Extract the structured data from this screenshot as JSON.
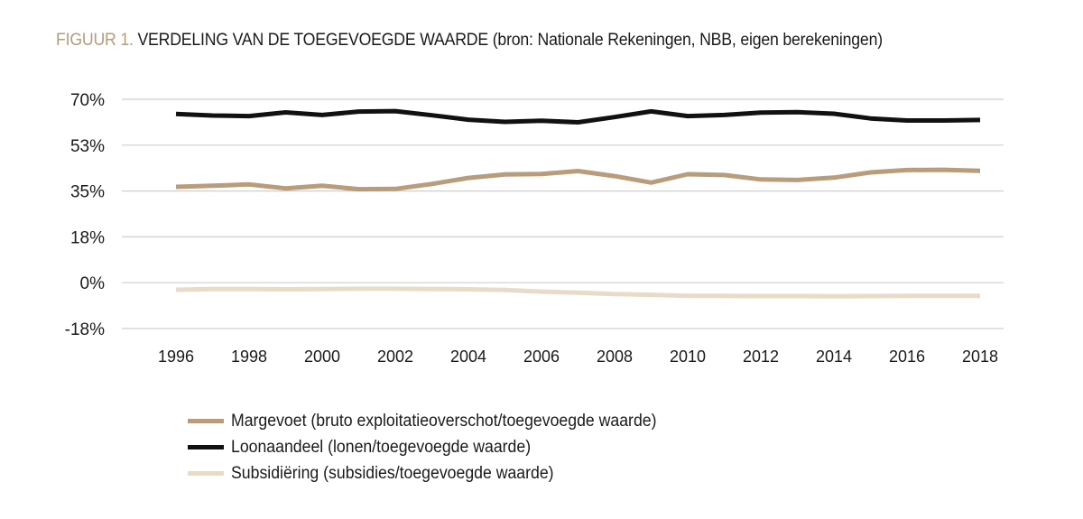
{
  "title": {
    "figure": "FIGUUR 1.",
    "main": "VERDELING VAN DE TOEGEVOEGDE WAARDE",
    "source": "(bron: Nationale Rekeningen, NBB, eigen berekeningen)"
  },
  "colors": {
    "margevoet": "#b89c7c",
    "loonaandeel": "#111111",
    "subsidiering": "#e8dcc9",
    "grid": "#cfcfcf"
  },
  "chart_data": {
    "type": "line",
    "x": [
      1996,
      1997,
      1998,
      1999,
      2000,
      2001,
      2002,
      2003,
      2004,
      2005,
      2006,
      2007,
      2008,
      2009,
      2010,
      2011,
      2012,
      2013,
      2014,
      2015,
      2016,
      2017,
      2018
    ],
    "x_ticks": [
      "1996",
      "1998",
      "2000",
      "2002",
      "2004",
      "2006",
      "2008",
      "2010",
      "2012",
      "2014",
      "2016",
      "2018"
    ],
    "y_ticks": [
      "70%",
      "53%",
      "35%",
      "18%",
      "0%",
      "-18%"
    ],
    "y_tick_values": [
      70,
      52.5,
      35,
      17.5,
      0,
      -17.5
    ],
    "ylim": [
      -17.5,
      70
    ],
    "grid": true,
    "legend_position": "bottom",
    "series": [
      {
        "key": "margevoet",
        "name": "Margevoet (bruto exploitatieoverschot/toegevoegde waarde)",
        "values": [
          36.6,
          37.0,
          37.5,
          36.0,
          37.0,
          35.7,
          35.8,
          37.7,
          40.0,
          41.3,
          41.5,
          42.6,
          40.7,
          38.2,
          41.4,
          41.1,
          39.4,
          39.2,
          40.1,
          42.1,
          43.0,
          43.1,
          42.7
        ]
      },
      {
        "key": "loonaandeel",
        "name": "Loonaandeel (lonen/toegevoegde waarde)",
        "values": [
          64.4,
          63.8,
          63.6,
          65.0,
          64.0,
          65.3,
          65.5,
          63.9,
          62.2,
          61.4,
          61.8,
          61.2,
          63.2,
          65.4,
          63.6,
          64.0,
          64.9,
          65.1,
          64.5,
          62.7,
          61.9,
          61.9,
          62.1
        ]
      },
      {
        "key": "subsidiering",
        "name": "Subsidiëring (subsidies/toegevoegde waarde)",
        "values": [
          -2.7,
          -2.4,
          -2.4,
          -2.5,
          -2.4,
          -2.3,
          -2.3,
          -2.4,
          -2.5,
          -2.8,
          -3.4,
          -3.8,
          -4.3,
          -4.6,
          -5.0,
          -5.0,
          -5.1,
          -5.1,
          -5.2,
          -5.1,
          -5.0,
          -5.0,
          -5.0
        ]
      }
    ]
  }
}
